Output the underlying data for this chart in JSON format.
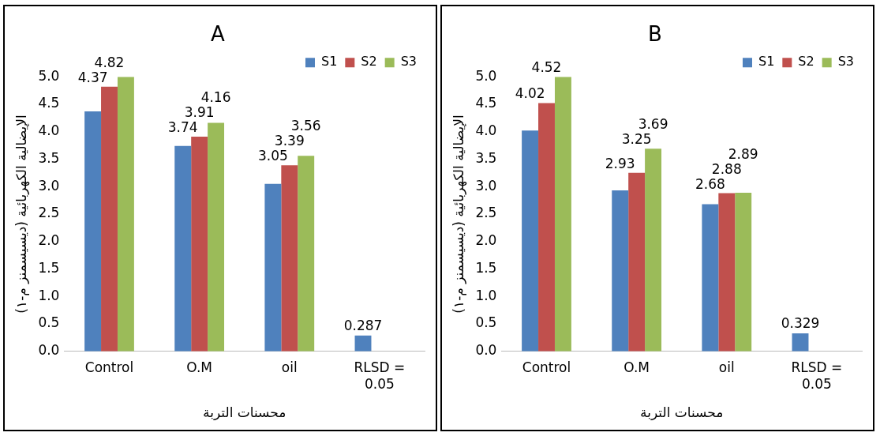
{
  "chart_data": [
    {
      "type": "bar",
      "title": "A",
      "xlabel": "محسنات التربة",
      "ylabel": "الإيضالية الكهربائية (ديسيسمنز م-١)",
      "categories": [
        "Control",
        "O.M",
        "oil",
        "RLSD = 0.05"
      ],
      "ylim": [
        0,
        5
      ],
      "yticks": [
        {
          "value": 0,
          "label": "0.0"
        },
        {
          "value": 0.5,
          "label": "0.5"
        },
        {
          "value": 1,
          "label": "1.0"
        },
        {
          "value": 1.5,
          "label": "1.5"
        },
        {
          "value": 2,
          "label": "2.0"
        },
        {
          "value": 2.5,
          "label": "2.5"
        },
        {
          "value": 3,
          "label": "3.0"
        },
        {
          "value": 3.5,
          "label": "3.5"
        },
        {
          "value": 4,
          "label": "4.0"
        },
        {
          "value": 4.5,
          "label": "4.5"
        },
        {
          "value": 5,
          "label": "5.0"
        }
      ],
      "grid": false,
      "legend": "top right",
      "series": [
        {
          "name": "S1",
          "color": "#4f81bd",
          "values": [
            4.37,
            3.74,
            3.05,
            0.287
          ],
          "value_labels": [
            "4.37",
            "3.74",
            "3.05",
            "0.287"
          ]
        },
        {
          "name": "S2",
          "color": "#c0504d",
          "values": [
            4.82,
            3.91,
            3.39,
            null
          ],
          "value_labels": [
            "4.82",
            "3.91",
            "3.39",
            null
          ]
        },
        {
          "name": "S3",
          "color": "#9bbb59",
          "values": [
            5.0,
            4.16,
            3.56,
            null
          ],
          "value_labels": [
            null,
            "4.16",
            "3.56",
            null
          ]
        }
      ]
    },
    {
      "type": "bar",
      "title": "B",
      "xlabel": "محسنات التربة",
      "ylabel": "الإيضالية الكهربائية (ديسيسمنز م-١)",
      "categories": [
        "Control",
        "O.M",
        "oil",
        "RLSD = 0.05"
      ],
      "ylim": [
        0,
        5
      ],
      "yticks": [
        {
          "value": 0,
          "label": "0.0"
        },
        {
          "value": 0.5,
          "label": "0.5"
        },
        {
          "value": 1,
          "label": "1.0"
        },
        {
          "value": 1.5,
          "label": "1.5"
        },
        {
          "value": 2,
          "label": "2.0"
        },
        {
          "value": 2.5,
          "label": "2.5"
        },
        {
          "value": 3,
          "label": "3.0"
        },
        {
          "value": 3.5,
          "label": "3.5"
        },
        {
          "value": 4,
          "label": "4.0"
        },
        {
          "value": 4.5,
          "label": "4.5"
        },
        {
          "value": 5,
          "label": "5.0"
        }
      ],
      "grid": false,
      "legend": "top right",
      "series": [
        {
          "name": "S1",
          "color": "#4f81bd",
          "values": [
            4.02,
            2.93,
            2.68,
            0.329
          ],
          "value_labels": [
            "4.02",
            "2.93",
            "2.68",
            "0.329"
          ]
        },
        {
          "name": "S2",
          "color": "#c0504d",
          "values": [
            4.52,
            3.25,
            2.88,
            null
          ],
          "value_labels": [
            "4.52",
            "3.25",
            "2.88",
            null
          ]
        },
        {
          "name": "S3",
          "color": "#9bbb59",
          "values": [
            5.0,
            3.69,
            2.89,
            null
          ],
          "value_labels": [
            null,
            "3.69",
            "2.89",
            null
          ]
        }
      ]
    }
  ]
}
